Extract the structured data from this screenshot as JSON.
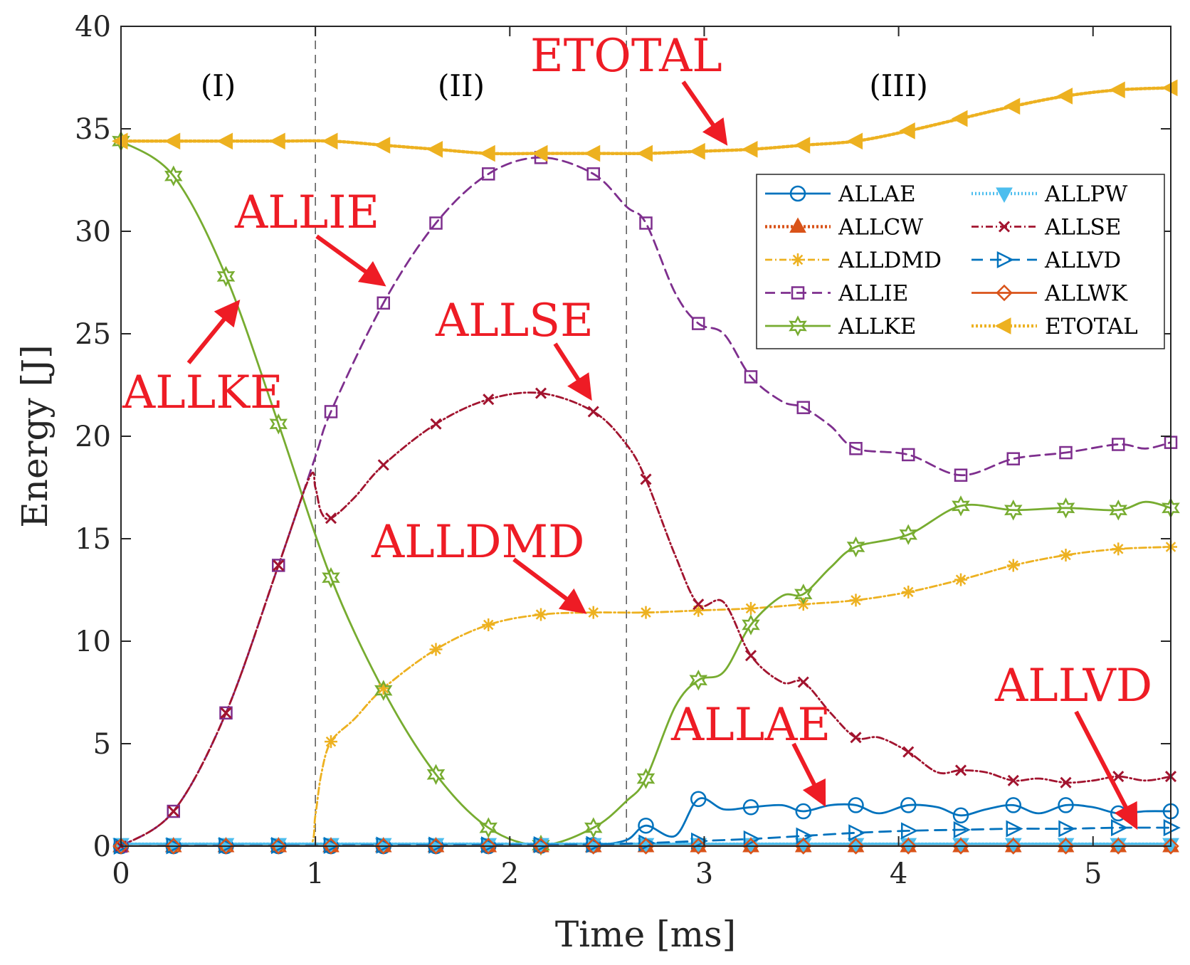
{
  "chart_data": {
    "type": "line",
    "title": "",
    "xlabel": "Time [ms]",
    "ylabel": "Energy [J]",
    "xlim": [
      0,
      5.4
    ],
    "ylim": [
      0,
      40
    ],
    "xticks": [
      0,
      1,
      2,
      3,
      4,
      5
    ],
    "yticks": [
      0,
      5,
      10,
      15,
      20,
      25,
      30,
      35,
      40
    ],
    "grid": false,
    "legend_position": "top-right",
    "region_dividers": [
      1.0,
      2.6
    ],
    "regions": [
      {
        "label": "(I)",
        "x": 0.5
      },
      {
        "label": "(II)",
        "x": 1.75
      },
      {
        "label": "(III)",
        "x": 4.0
      }
    ],
    "annotations": [
      {
        "text": "ETOTAL",
        "series": "ETOTAL"
      },
      {
        "text": "ALLIE",
        "series": "ALLIE"
      },
      {
        "text": "ALLSE",
        "series": "ALLSE"
      },
      {
        "text": "ALLKE",
        "series": "ALLKE"
      },
      {
        "text": "ALLDMD",
        "series": "ALLDMD"
      },
      {
        "text": "ALLAE",
        "series": "ALLAE"
      },
      {
        "text": "ALLVD",
        "series": "ALLVD"
      }
    ],
    "annotation_color": "#ee1c25",
    "series": [
      {
        "name": "ALLAE",
        "color": "#0072bd",
        "dash": "",
        "marker": "circle",
        "x": [
          0,
          0.27,
          0.54,
          0.81,
          1.08,
          1.35,
          1.62,
          1.89,
          2.16,
          2.43,
          2.6,
          2.7,
          2.85,
          2.97,
          3.1,
          3.24,
          3.4,
          3.51,
          3.65,
          3.78,
          3.9,
          4.05,
          4.2,
          4.32,
          4.45,
          4.59,
          4.72,
          4.86,
          5.0,
          5.13,
          5.27,
          5.4
        ],
        "y": [
          0,
          0,
          0,
          0,
          0,
          0,
          0,
          0,
          0.02,
          0.05,
          0.3,
          1.0,
          0.5,
          2.3,
          1.8,
          1.9,
          2.0,
          1.7,
          2.0,
          2.0,
          1.6,
          2.0,
          1.9,
          1.5,
          1.8,
          2.0,
          1.6,
          2.0,
          1.9,
          1.6,
          1.7,
          1.7
        ]
      },
      {
        "name": "ALLCW",
        "color": "#d95319",
        "dash": "3 3",
        "marker": "triangle-up",
        "x": [
          0,
          0.27,
          0.54,
          0.81,
          1.08,
          1.35,
          1.62,
          1.89,
          2.16,
          2.43,
          2.7,
          2.97,
          3.24,
          3.51,
          3.78,
          4.05,
          4.32,
          4.59,
          4.86,
          5.13,
          5.4
        ],
        "y": [
          0,
          0,
          0,
          0,
          0,
          0,
          0,
          0,
          0,
          0,
          0,
          0,
          0,
          0,
          0,
          0,
          0,
          0,
          0,
          0,
          0
        ]
      },
      {
        "name": "ALLDMD",
        "color": "#edb120",
        "dash": "10 4 2 4",
        "marker": "star",
        "x": [
          0,
          0.27,
          0.54,
          0.81,
          0.97,
          1.0,
          1.03,
          1.08,
          1.2,
          1.35,
          1.62,
          1.89,
          2.16,
          2.43,
          2.7,
          2.97,
          3.24,
          3.51,
          3.78,
          4.05,
          4.32,
          4.59,
          4.86,
          5.13,
          5.4
        ],
        "y": [
          0,
          0,
          0,
          0,
          0,
          1.5,
          3.5,
          5.1,
          6.2,
          7.7,
          9.6,
          10.8,
          11.3,
          11.4,
          11.4,
          11.5,
          11.6,
          11.8,
          12.0,
          12.4,
          13.0,
          13.7,
          14.2,
          14.5,
          14.6
        ]
      },
      {
        "name": "ALLIE",
        "color": "#7e2f8e",
        "dash": "14 8",
        "marker": "square",
        "x": [
          0,
          0.27,
          0.54,
          0.81,
          1.0,
          1.08,
          1.35,
          1.62,
          1.89,
          2.16,
          2.43,
          2.6,
          2.7,
          2.85,
          2.97,
          3.1,
          3.24,
          3.4,
          3.51,
          3.65,
          3.78,
          4.05,
          4.32,
          4.59,
          4.86,
          5.13,
          5.27,
          5.4
        ],
        "y": [
          0,
          1.7,
          6.5,
          13.7,
          19.0,
          21.2,
          26.5,
          30.4,
          32.8,
          33.6,
          32.8,
          31.2,
          30.4,
          27.0,
          25.5,
          25.0,
          22.9,
          21.7,
          21.4,
          20.5,
          19.4,
          19.1,
          18.1,
          18.9,
          19.2,
          19.6,
          19.4,
          19.7
        ]
      },
      {
        "name": "ALLKE",
        "color": "#77ac30",
        "dash": "",
        "marker": "hexagram",
        "x": [
          0,
          0.27,
          0.54,
          0.81,
          1.08,
          1.35,
          1.62,
          1.89,
          2.16,
          2.43,
          2.6,
          2.7,
          2.85,
          2.97,
          3.1,
          3.24,
          3.4,
          3.51,
          3.65,
          3.78,
          4.05,
          4.32,
          4.59,
          4.86,
          5.13,
          5.27,
          5.4
        ],
        "y": [
          34.4,
          32.7,
          27.8,
          20.6,
          13.1,
          7.6,
          3.5,
          0.9,
          0.05,
          0.9,
          2.2,
          3.3,
          6.8,
          8.1,
          8.5,
          10.8,
          12.2,
          12.3,
          13.6,
          14.6,
          15.2,
          16.6,
          16.4,
          16.5,
          16.4,
          16.8,
          16.5
        ]
      },
      {
        "name": "ALLPW",
        "color": "#4dbeee",
        "dash": "2 3",
        "marker": "triangle-down",
        "x": [
          0,
          0.27,
          0.54,
          0.81,
          1.08,
          1.35,
          1.62,
          1.89,
          2.16,
          2.43,
          2.7,
          2.97,
          3.24,
          3.51,
          3.78,
          4.05,
          4.32,
          4.59,
          4.86,
          5.13,
          5.4
        ],
        "y": [
          0.1,
          0.1,
          0.1,
          0.1,
          0.1,
          0.1,
          0.1,
          0.1,
          0.1,
          0.1,
          0.1,
          0.1,
          0.1,
          0.1,
          0.1,
          0.1,
          0.1,
          0.1,
          0.1,
          0.1,
          0.1
        ]
      },
      {
        "name": "ALLSE",
        "color": "#a2142f",
        "dash": "10 4 2 4",
        "marker": "x",
        "x": [
          0,
          0.27,
          0.54,
          0.81,
          0.97,
          1.0,
          1.03,
          1.08,
          1.2,
          1.35,
          1.62,
          1.89,
          2.16,
          2.43,
          2.6,
          2.7,
          2.85,
          2.97,
          3.1,
          3.24,
          3.4,
          3.51,
          3.65,
          3.78,
          3.9,
          4.05,
          4.2,
          4.32,
          4.45,
          4.59,
          4.72,
          4.86,
          5.0,
          5.13,
          5.27,
          5.4
        ],
        "y": [
          0,
          1.7,
          6.5,
          13.7,
          18.0,
          17.5,
          16.3,
          16.0,
          17.0,
          18.6,
          20.6,
          21.8,
          22.1,
          21.2,
          19.6,
          17.9,
          14.2,
          11.8,
          11.9,
          9.3,
          8.0,
          8.0,
          6.5,
          5.3,
          5.3,
          4.6,
          3.6,
          3.7,
          3.6,
          3.2,
          3.3,
          3.1,
          3.2,
          3.4,
          3.2,
          3.4
        ]
      },
      {
        "name": "ALLVD",
        "color": "#0072bd",
        "dash": "16 10",
        "marker": "triangle-right",
        "x": [
          0,
          0.27,
          0.54,
          0.81,
          1.08,
          1.35,
          1.62,
          1.89,
          2.16,
          2.43,
          2.7,
          2.97,
          3.24,
          3.51,
          3.78,
          4.05,
          4.32,
          4.59,
          4.86,
          5.13,
          5.4
        ],
        "y": [
          0,
          0.02,
          0.03,
          0.03,
          0.04,
          0.05,
          0.05,
          0.06,
          0.07,
          0.08,
          0.15,
          0.25,
          0.35,
          0.5,
          0.65,
          0.75,
          0.8,
          0.85,
          0.85,
          0.9,
          0.9
        ]
      },
      {
        "name": "ALLWK",
        "color": "#d95319",
        "dash": "",
        "marker": "diamond",
        "x": [
          0,
          0.27,
          0.54,
          0.81,
          1.08,
          1.35,
          1.62,
          1.89,
          2.16,
          2.43,
          2.7,
          2.97,
          3.24,
          3.51,
          3.78,
          4.05,
          4.32,
          4.59,
          4.86,
          5.13,
          5.4
        ],
        "y": [
          0,
          0,
          0,
          0,
          0,
          0,
          0,
          0,
          0,
          0,
          0,
          0,
          0,
          0,
          0,
          0,
          0,
          0,
          0,
          0,
          0
        ]
      },
      {
        "name": "ETOTAL",
        "color": "#edb120",
        "dash": "3 3",
        "marker": "triangle-left",
        "x": [
          0,
          0.27,
          0.54,
          0.81,
          1.08,
          1.35,
          1.62,
          1.89,
          2.16,
          2.43,
          2.7,
          2.97,
          3.24,
          3.51,
          3.78,
          4.05,
          4.32,
          4.59,
          4.86,
          5.13,
          5.4
        ],
        "y": [
          34.4,
          34.4,
          34.4,
          34.4,
          34.4,
          34.2,
          34.0,
          33.8,
          33.8,
          33.8,
          33.8,
          33.9,
          34.0,
          34.2,
          34.4,
          34.9,
          35.5,
          36.1,
          36.6,
          36.9,
          37.0
        ]
      }
    ]
  }
}
